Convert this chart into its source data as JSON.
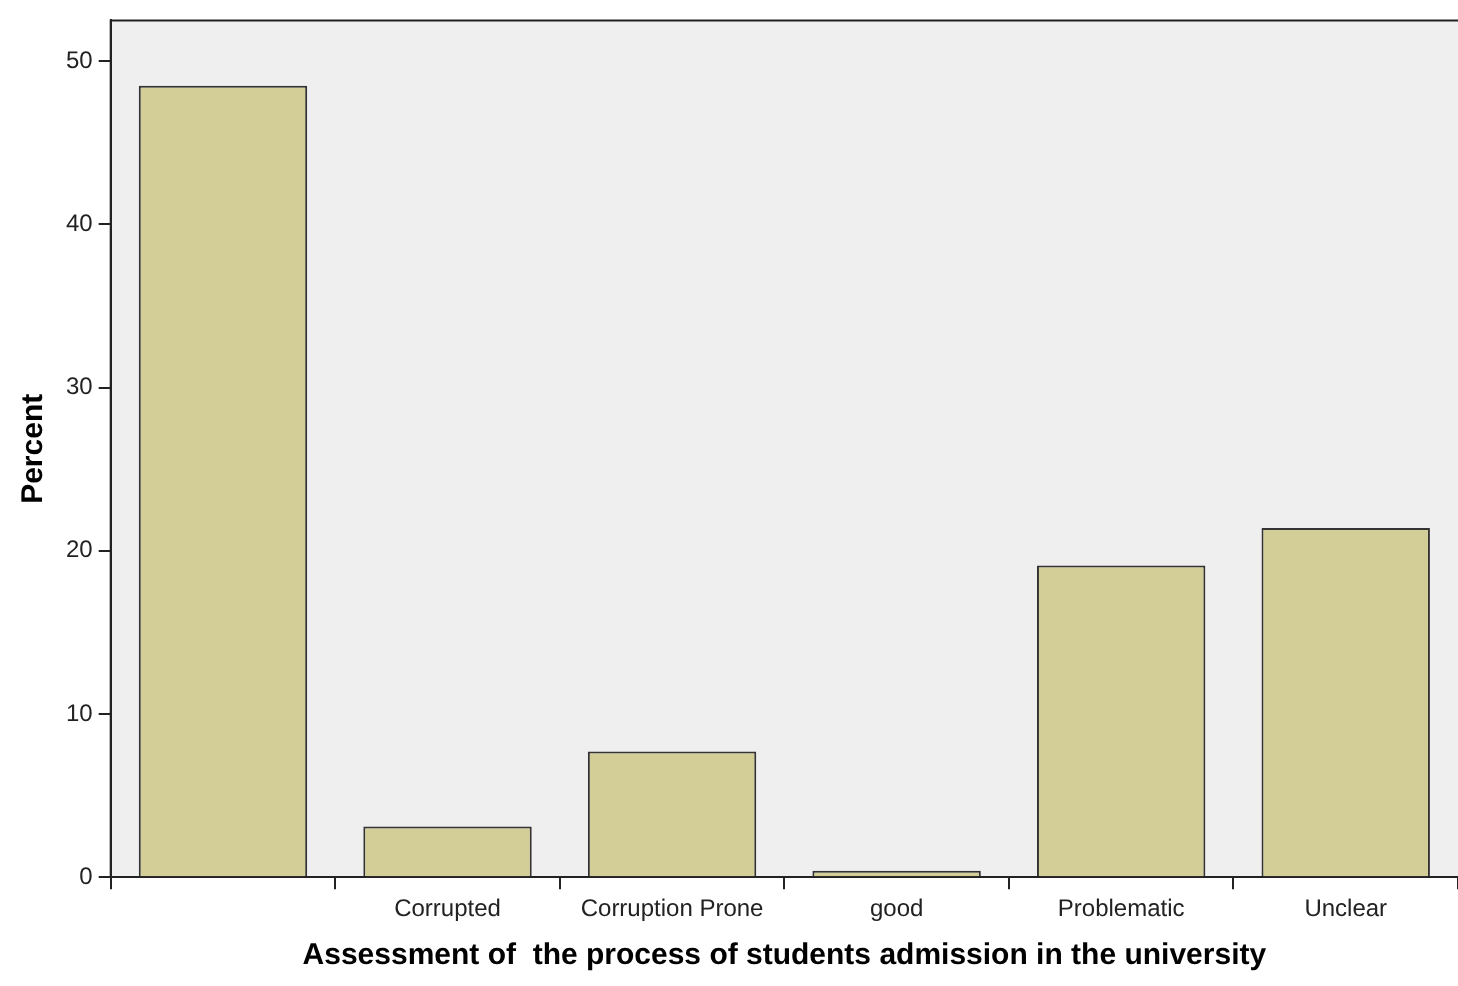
{
  "chart_data": {
    "type": "bar",
    "xlabel": "Assessment of  the process of students admission in the university",
    "ylabel": "Percent",
    "categories": [
      null,
      "Corrupted",
      "Corruption Prone",
      "good",
      "Problematic",
      "Unclear"
    ],
    "values": [
      48.5,
      3.1,
      7.7,
      0.4,
      19.1,
      21.4
    ],
    "color": "#d3ce97",
    "ylim": [
      0,
      52.5
    ],
    "yticks": [
      0,
      10,
      20,
      30,
      40,
      50
    ],
    "grid": false,
    "legend": false
  }
}
